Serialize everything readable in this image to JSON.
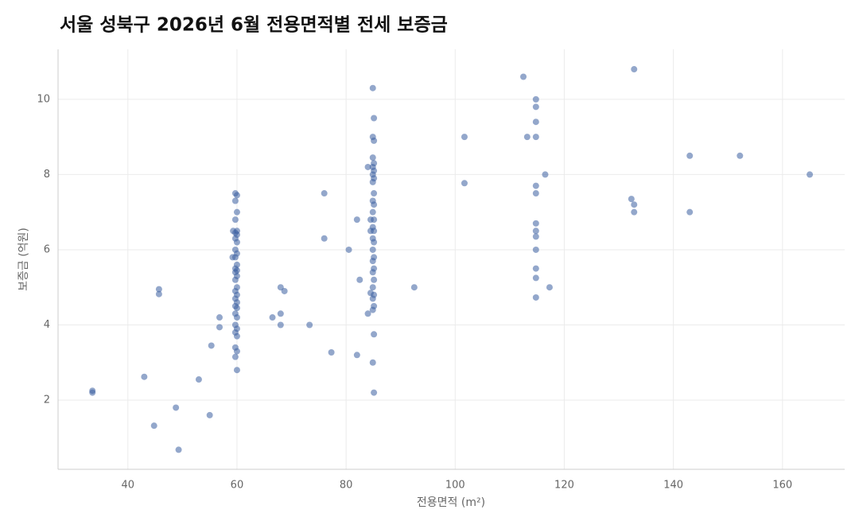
{
  "chart_data": {
    "type": "scatter",
    "title": "서울 성북구 2026년 6월 전용면적별 전세 보증금",
    "xlabel": "전용면적 (m²)",
    "ylabel": "보증금 (억원)",
    "color": "#3a5fa0",
    "grid": true,
    "xlim": [
      27.2,
      171.4
    ],
    "ylim": [
      0.16,
      11.33
    ],
    "xticks": [
      40,
      60,
      80,
      100,
      120,
      140,
      160
    ],
    "yticks": [
      2,
      4,
      6,
      8,
      10
    ],
    "x": [
      33.5,
      33.5,
      43,
      44.8,
      45.7,
      45.7,
      48.8,
      49.3,
      53,
      55,
      55.3,
      56.8,
      56.8,
      59.7,
      60.0,
      59.7,
      60.0,
      59.7,
      60.0,
      59.7,
      60.0,
      59.7,
      60.0,
      59.7,
      60.0,
      59.7,
      60.0,
      59.7,
      60.0,
      59.7,
      60.0,
      59.7,
      60.0,
      59.7,
      60.0,
      59.7,
      60.0,
      59.7,
      60.0,
      59.7,
      60.0,
      59.7,
      60.0,
      59.7,
      60.0,
      59.7,
      60.0,
      59.7,
      60.0,
      59.3,
      59.2,
      66.5,
      68,
      68,
      68,
      68.7,
      73.3,
      76,
      76,
      77.3,
      80.5,
      82,
      82,
      82.5,
      84,
      84,
      84.5,
      84.5,
      84.5,
      84.9,
      85.1,
      84.9,
      85.1,
      84.9,
      85.1,
      84.9,
      85.1,
      84.9,
      85.1,
      84.9,
      85.1,
      84.9,
      85.1,
      84.9,
      85.1,
      84.9,
      85.1,
      84.9,
      85.1,
      84.9,
      85.1,
      84.9,
      85.1,
      84.9,
      85.1,
      84.9,
      85.1,
      84.9,
      85.1,
      84.9,
      85.1,
      84.9,
      85.1,
      92.5,
      101.7,
      101.7,
      112.5,
      113.2,
      114.8,
      114.8,
      114.8,
      114.8,
      114.8,
      114.8,
      114.8,
      114.8,
      114.8,
      114.8,
      114.8,
      114.8,
      114.8,
      116.5,
      117.3,
      132.3,
      132.8,
      132.8,
      132.8,
      143,
      143,
      152.2,
      165
    ],
    "y": [
      2.25,
      2.2,
      2.62,
      1.32,
      4.95,
      4.82,
      1.8,
      0.68,
      2.55,
      1.6,
      3.45,
      4.2,
      3.94,
      7.5,
      7.45,
      7.3,
      7.0,
      6.8,
      6.5,
      6.45,
      6.4,
      6.3,
      6.2,
      6.0,
      5.9,
      5.8,
      5.6,
      5.5,
      5.45,
      5.4,
      5.3,
      5.2,
      5.0,
      4.9,
      4.8,
      4.7,
      4.6,
      4.5,
      4.45,
      4.3,
      4.2,
      4.0,
      3.9,
      3.8,
      3.7,
      3.4,
      3.3,
      3.15,
      2.8,
      6.5,
      5.8,
      4.2,
      5.0,
      4.3,
      4.0,
      4.9,
      4.0,
      7.5,
      6.3,
      3.27,
      6.0,
      6.8,
      3.2,
      5.2,
      8.2,
      4.3,
      6.8,
      6.5,
      4.85,
      10.3,
      9.5,
      9.0,
      8.9,
      8.45,
      8.3,
      8.2,
      8.1,
      8.0,
      7.9,
      7.8,
      7.5,
      7.3,
      7.2,
      7.0,
      6.8,
      6.6,
      6.5,
      6.3,
      6.2,
      6.0,
      5.8,
      5.7,
      5.5,
      5.4,
      5.2,
      5.0,
      4.8,
      4.7,
      4.5,
      4.4,
      3.75,
      3.0,
      2.2,
      5.0,
      9.0,
      7.77,
      10.6,
      9.0,
      10.0,
      9.8,
      9.4,
      9.0,
      7.7,
      7.5,
      6.7,
      6.5,
      6.35,
      6.0,
      5.5,
      5.25,
      4.73,
      8.0,
      5.0,
      7.35,
      10.8,
      7.2,
      7.0,
      8.5,
      7.0,
      8.5,
      8.0
    ]
  }
}
